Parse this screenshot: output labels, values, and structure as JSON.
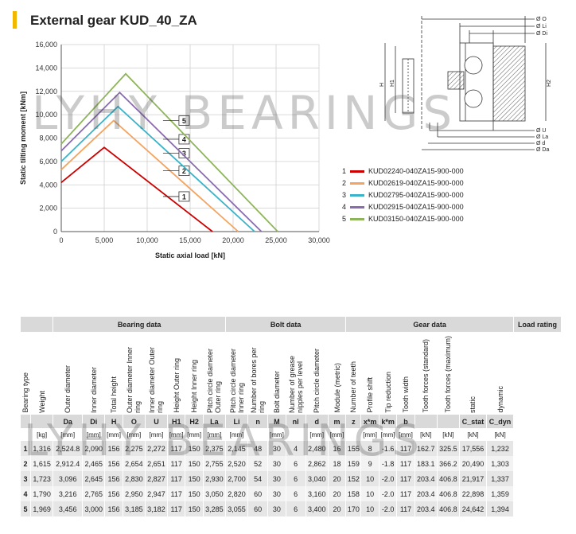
{
  "title": "External gear KUD_40_ZA",
  "colors": {
    "accent": "#f2b800",
    "series": [
      "#cc0000",
      "#f4a460",
      "#3ab3c9",
      "#8a6bb0",
      "#8fb55a"
    ]
  },
  "chart_data": {
    "type": "line",
    "xlabel": "Static axial load [kN]",
    "ylabel": "Static tilting moment [kNm]",
    "xlim": [
      0,
      30000
    ],
    "ylim": [
      0,
      16000
    ],
    "x_ticks": [
      "0",
      "5,000",
      "10,000",
      "15,000",
      "20,000",
      "25,000",
      "30,000"
    ],
    "y_ticks": [
      "0",
      "2,000",
      "4,000",
      "6,000",
      "8,000",
      "10,000",
      "12,000",
      "14,000",
      "16,000"
    ],
    "grid": true,
    "series": [
      {
        "label": "1",
        "x": [
          0,
          5000,
          17600
        ],
        "y": [
          4200,
          7200,
          0
        ],
        "label_x": 12400,
        "label_y": 3000
      },
      {
        "label": "2",
        "x": [
          0,
          6100,
          20600
        ],
        "y": [
          5300,
          9500,
          0
        ],
        "label_x": 12400,
        "label_y": 5200
      },
      {
        "label": "3",
        "x": [
          0,
          6600,
          22500
        ],
        "y": [
          6000,
          10700,
          0
        ],
        "label_x": 12400,
        "label_y": 6700
      },
      {
        "label": "4",
        "x": [
          0,
          6800,
          23300
        ],
        "y": [
          6900,
          11900,
          0
        ],
        "label_x": 12400,
        "label_y": 7900
      },
      {
        "label": "5",
        "x": [
          0,
          7500,
          25200
        ],
        "y": [
          7500,
          13500,
          0
        ],
        "label_x": 12400,
        "label_y": 9500
      }
    ]
  },
  "drawing_labels": [
    "Ø O",
    "Ø Li",
    "Ø Di",
    "Ø U",
    "Ø La",
    "Ø d",
    "Ø Da",
    "H",
    "H1",
    "H2"
  ],
  "legend": [
    {
      "num": "1",
      "text": "KUD02240-040ZA15-900-000"
    },
    {
      "num": "2",
      "text": "KUD02619-040ZA15-900-000"
    },
    {
      "num": "3",
      "text": "KUD02795-040ZA15-900-000"
    },
    {
      "num": "4",
      "text": "KUD02915-040ZA15-900-000"
    },
    {
      "num": "5",
      "text": "KUD03150-040ZA15-900-000"
    }
  ],
  "watermark": "LYHY BEARINGS",
  "table": {
    "groups": [
      {
        "label": "",
        "span": 2
      },
      {
        "label": "Bearing data",
        "span": 8
      },
      {
        "label": "Bolt data",
        "span": 6
      },
      {
        "label": "Gear data",
        "span": 8
      },
      {
        "label": "Load rating",
        "span": 2
      }
    ],
    "headers": [
      "Bearing type",
      "Weight",
      "Outer diameter",
      "Inner diameter",
      "Total height",
      "Outer diameter Inner ring",
      "Inner diameter Outer ring",
      "Height Outer ring",
      "Height Inner ring",
      "Pitch circle diameter Outer ring",
      "Pitch circle diameter Inner ring",
      "Number of bores per ring",
      "Bolt diameter",
      "Number of grease nipples per level",
      "Pitch circle diameter",
      "Module (metric)",
      "Number of teeth",
      "Profile shift",
      "Tip reduction",
      "Tooth width",
      "Tooth forces (standard)",
      "Tooth forces (maximum)",
      "static",
      "dynamic"
    ],
    "symbols": [
      "",
      "",
      "Da",
      "Di",
      "H",
      "O",
      "U",
      "H1",
      "H2",
      "La",
      "Li",
      "n",
      "M",
      "nl",
      "d",
      "m",
      "z",
      "x*m",
      "k*m",
      "b",
      "",
      "",
      "C_stat",
      "C_dyn"
    ],
    "units": [
      "",
      "[kg]",
      "[mm]",
      "[mm]",
      "[mm]",
      "[mm]",
      "[mm]",
      "[mm]",
      "[mm]",
      "[mm]",
      "[mm]",
      "",
      "[mm]",
      "",
      "[mm]",
      "[mm]",
      "",
      "[mm]",
      "[mm]",
      "[mm]",
      "[kN]",
      "[kN]",
      "[kN]",
      "[kN]"
    ],
    "rows": [
      [
        "1",
        "1,316",
        "2,524.8",
        "2,090",
        "156",
        "2,275",
        "2,272",
        "117",
        "150",
        "2,375",
        "2,145",
        "48",
        "30",
        "4",
        "2,480",
        "16",
        "155",
        "8",
        "-1.6",
        "117",
        "162.7",
        "325.5",
        "17,556",
        "1,232"
      ],
      [
        "2",
        "1,615",
        "2,912.4",
        "2,465",
        "156",
        "2,654",
        "2,651",
        "117",
        "150",
        "2,755",
        "2,520",
        "52",
        "30",
        "6",
        "2,862",
        "18",
        "159",
        "9",
        "-1.8",
        "117",
        "183.1",
        "366.2",
        "20,490",
        "1,303"
      ],
      [
        "3",
        "1,723",
        "3,096",
        "2,645",
        "156",
        "2,830",
        "2,827",
        "117",
        "150",
        "2,930",
        "2,700",
        "54",
        "30",
        "6",
        "3,040",
        "20",
        "152",
        "10",
        "-2.0",
        "117",
        "203.4",
        "406.8",
        "21,917",
        "1,337"
      ],
      [
        "4",
        "1,790",
        "3,216",
        "2,765",
        "156",
        "2,950",
        "2,947",
        "117",
        "150",
        "3,050",
        "2,820",
        "60",
        "30",
        "6",
        "3,160",
        "20",
        "158",
        "10",
        "-2.0",
        "117",
        "203.4",
        "406.8",
        "22,898",
        "1,359"
      ],
      [
        "5",
        "1,969",
        "3,456",
        "3,000",
        "156",
        "3,185",
        "3,182",
        "117",
        "150",
        "3,285",
        "3,055",
        "60",
        "30",
        "6",
        "3,400",
        "20",
        "170",
        "10",
        "-2.0",
        "117",
        "203.4",
        "406.8",
        "24,642",
        "1,394"
      ]
    ]
  }
}
